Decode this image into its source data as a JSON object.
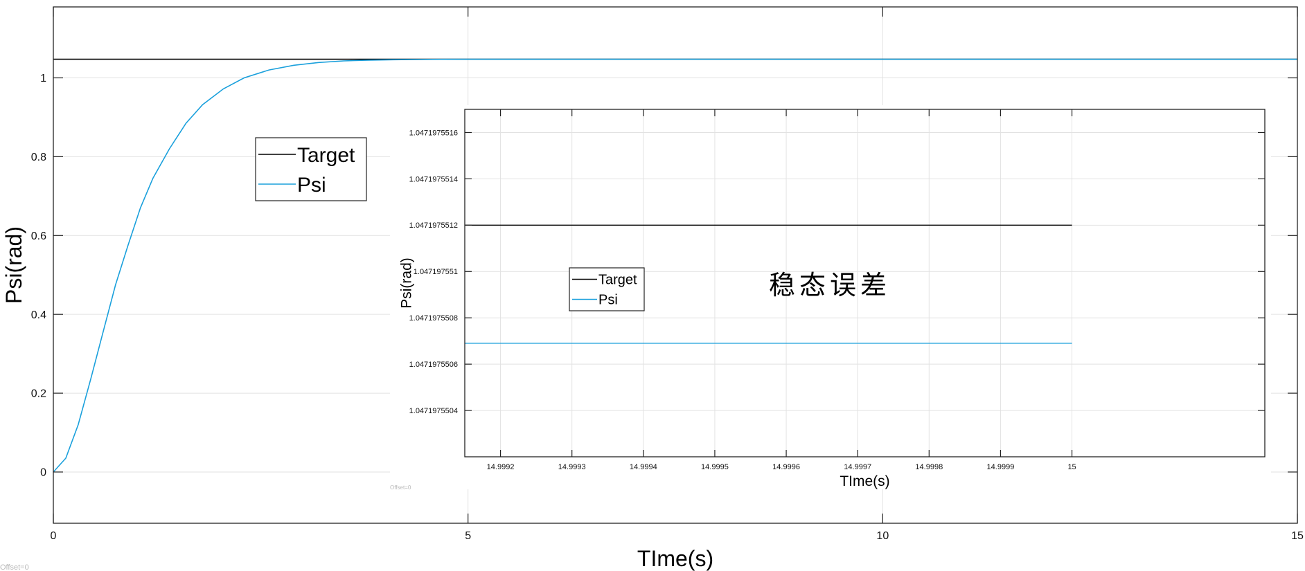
{
  "chart_data": [
    {
      "id": "main",
      "type": "line",
      "xlabel": "TIme(s)",
      "ylabel": "Psi(rad)",
      "xlim": [
        0,
        15
      ],
      "ylim": [
        -0.13,
        1.18
      ],
      "xticks": [
        0,
        5,
        10,
        15
      ],
      "xtick_labels": [
        "0",
        "5",
        "10",
        "15"
      ],
      "yticks": [
        0,
        0.2,
        0.4,
        0.6,
        0.8,
        1
      ],
      "ytick_labels": [
        "0",
        "0.2",
        "0.4",
        "0.6",
        "0.8",
        "1"
      ],
      "grid": true,
      "legend_position": "upper-left",
      "offset_label": "Offset=0",
      "series": [
        {
          "name": "Target",
          "color": "#000000",
          "x": [
            0,
            15
          ],
          "y": [
            1.0472,
            1.0472
          ]
        },
        {
          "name": "Psi",
          "color": "#1aa0dc",
          "x": [
            0,
            0.15,
            0.3,
            0.45,
            0.6,
            0.75,
            0.9,
            1.05,
            1.2,
            1.4,
            1.6,
            1.8,
            2.05,
            2.3,
            2.6,
            2.9,
            3.2,
            3.5,
            3.8,
            4.1,
            4.4,
            4.7,
            5.0,
            5.5,
            6.0,
            15
          ],
          "y": [
            0,
            0.035,
            0.12,
            0.235,
            0.355,
            0.475,
            0.575,
            0.67,
            0.745,
            0.82,
            0.885,
            0.932,
            0.972,
            1.0,
            1.02,
            1.032,
            1.039,
            1.043,
            1.045,
            1.046,
            1.0465,
            1.047,
            1.0472,
            1.0472,
            1.0472,
            1.0472
          ]
        }
      ]
    },
    {
      "id": "inset",
      "type": "line",
      "xlabel": "TIme(s)",
      "ylabel": "Psi(rad)",
      "annotation": "稳态误差",
      "xlim": [
        14.99915,
        15.00027
      ],
      "ylim": [
        1.0471975502,
        1.0471975517
      ],
      "xticks": [
        14.9992,
        14.9993,
        14.9994,
        14.9995,
        14.9996,
        14.9997,
        14.9998,
        14.9999,
        15
      ],
      "xtick_labels": [
        "14.9992",
        "14.9993",
        "14.9994",
        "14.9995",
        "14.9996",
        "14.9997",
        "14.9998",
        "14.9999",
        "15"
      ],
      "yticks": [
        1.0471975504,
        1.0471975506,
        1.0471975508,
        1.047197551,
        1.0471975512,
        1.0471975514,
        1.0471975516
      ],
      "ytick_labels": [
        "1.0471975504",
        "1.0471975506",
        "1.0471975508",
        "1.047197551",
        "1.0471975512",
        "1.0471975514",
        "1.0471975516"
      ],
      "grid": true,
      "legend_position": "center-left",
      "offset_label": "Offset=0",
      "series": [
        {
          "name": "Target",
          "color": "#000000",
          "x": [
            14.99915,
            15.0
          ],
          "y": [
            1.0471975512,
            1.0471975512
          ]
        },
        {
          "name": "Psi",
          "color": "#1aa0dc",
          "x": [
            14.99915,
            15.0
          ],
          "y": [
            1.04719755069,
            1.04719755069
          ]
        }
      ]
    }
  ]
}
